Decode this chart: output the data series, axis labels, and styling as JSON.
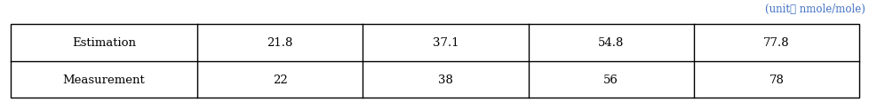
{
  "unit_label": "(unit： nmole/mole)",
  "unit_color": "#4472c4",
  "rows": [
    {
      "label": "Estimation",
      "values": [
        "21.8",
        "37.1",
        "54.8",
        "77.8"
      ]
    },
    {
      "label": "Measurement",
      "values": [
        "22",
        "38",
        "56",
        "78"
      ]
    }
  ],
  "background_color": "#ffffff",
  "border_color": "#000000",
  "text_color": "#000000",
  "unit_fontsize": 8.5,
  "cell_fontsize": 9.5,
  "fig_width": 9.79,
  "fig_height": 1.16,
  "dpi": 100
}
